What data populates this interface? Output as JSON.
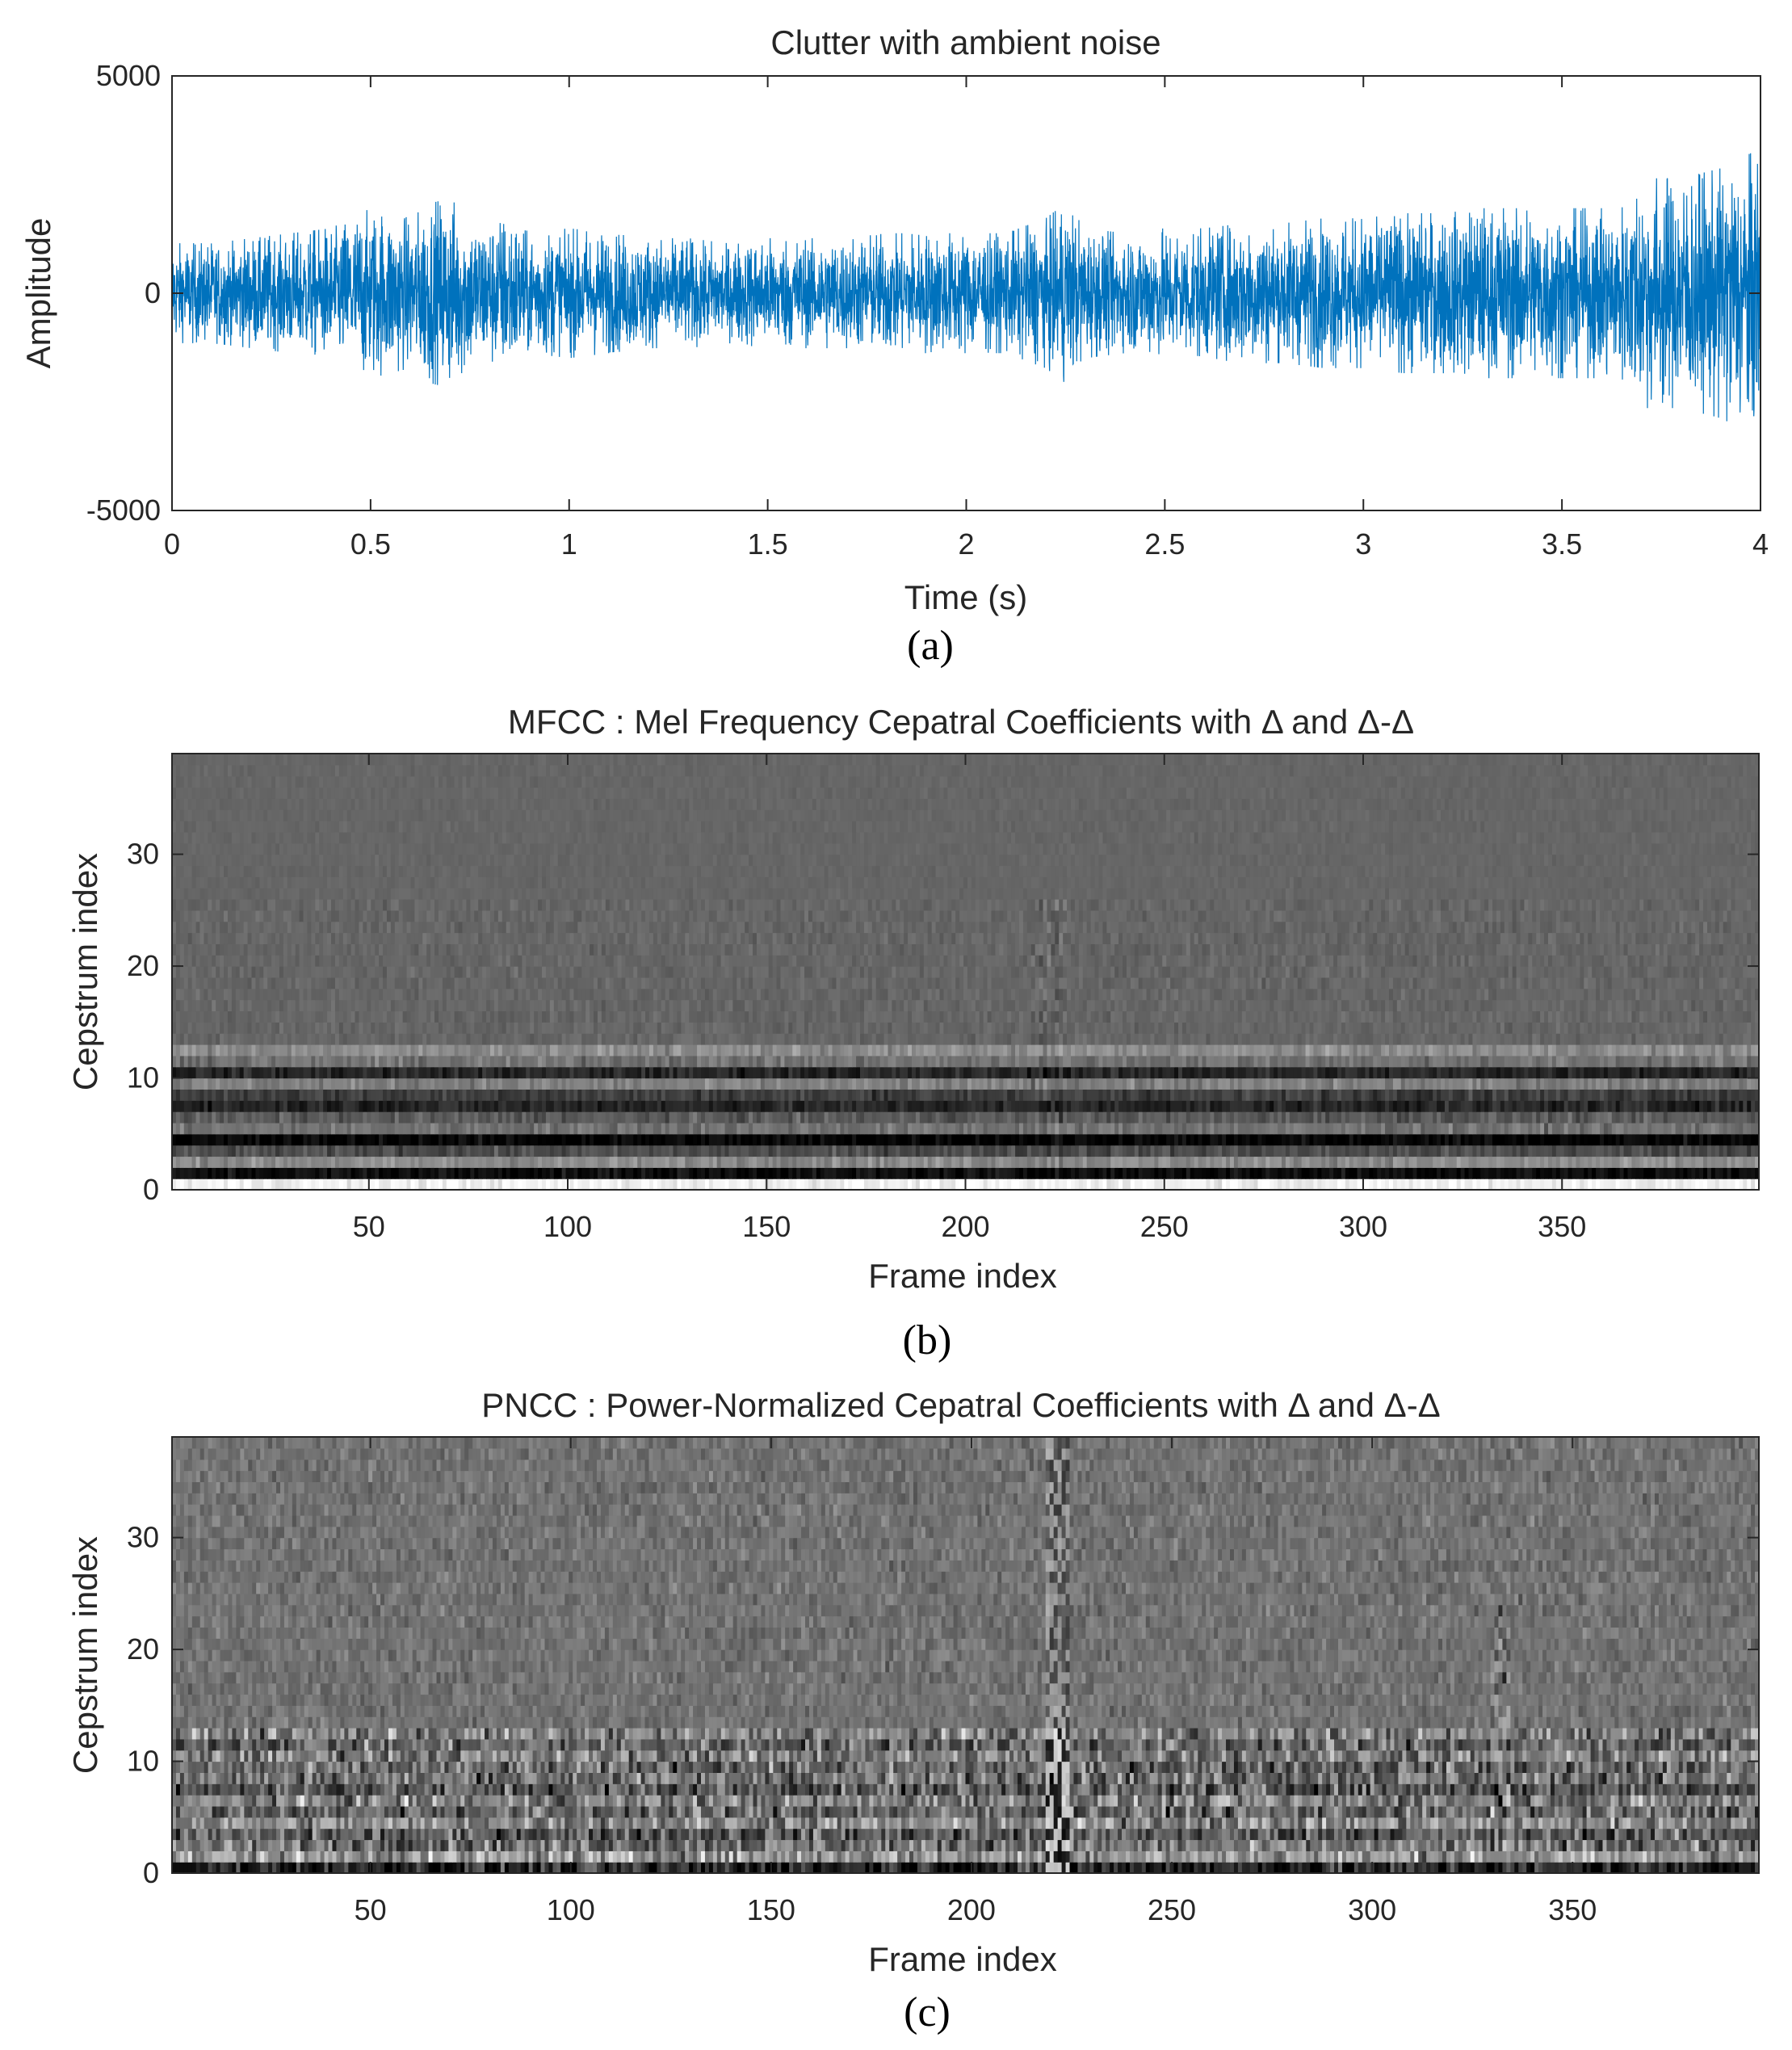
{
  "chart_data": [
    {
      "type": "line",
      "panel": "a",
      "title": "Clutter with ambient noise",
      "xlabel": "Time (s)",
      "ylabel": "Amplitude",
      "caption": "(a)",
      "xlim": [
        0,
        4
      ],
      "ylim": [
        -5000,
        5000
      ],
      "xticks": [
        0,
        0.5,
        1,
        1.5,
        2,
        2.5,
        3,
        3.5,
        4
      ],
      "xtick_labels": [
        "0",
        "0.5",
        "1",
        "1.5",
        "2",
        "2.5",
        "3",
        "3.5",
        "4"
      ],
      "yticks": [
        5000,
        0,
        -5000
      ],
      "ytick_labels": [
        "5000",
        "0",
        "-5000"
      ],
      "line_color": "#0072bd",
      "grid": false,
      "envelope": {
        "x": [
          0,
          0.1,
          0.2,
          0.3,
          0.4,
          0.5,
          0.55,
          0.6,
          0.65,
          0.7,
          0.75,
          0.8,
          0.85,
          0.9,
          1.0,
          1.1,
          1.2,
          1.3,
          1.4,
          1.5,
          1.6,
          1.7,
          1.8,
          1.9,
          2.0,
          2.1,
          2.2,
          2.25,
          2.3,
          2.4,
          2.5,
          2.6,
          2.7,
          2.8,
          2.9,
          3.0,
          3.1,
          3.2,
          3.3,
          3.4,
          3.5,
          3.6,
          3.65,
          3.7,
          3.75,
          3.8,
          3.9,
          4.0
        ],
        "amplitude": [
          1000,
          1000,
          1100,
          1200,
          1300,
          1700,
          1600,
          1500,
          1800,
          1900,
          1500,
          1400,
          1600,
          1200,
          1300,
          1200,
          1100,
          1100,
          1000,
          1100,
          1100,
          1100,
          1200,
          1200,
          1200,
          1200,
          1500,
          1800,
          1300,
          1200,
          1300,
          1300,
          1400,
          1400,
          1500,
          1500,
          1600,
          1600,
          1700,
          1700,
          1700,
          1700,
          1700,
          2300,
          2300,
          2300,
          2500,
          2900
        ]
      }
    },
    {
      "type": "heatmap",
      "panel": "b",
      "title": "MFCC : Mel Frequency Cepatral Coefficients with Δ and Δ-Δ",
      "xlabel": "Frame index",
      "ylabel": "Cepstrum index",
      "caption": "(b)",
      "xlim": [
        1,
        399
      ],
      "ylim": [
        0,
        39
      ],
      "xticks": [
        50,
        100,
        150,
        200,
        250,
        300,
        350
      ],
      "xtick_labels": [
        "50",
        "100",
        "150",
        "200",
        "250",
        "300",
        "350"
      ],
      "yticks": [
        0,
        10,
        20,
        30
      ],
      "ytick_labels": [
        "0",
        "10",
        "20",
        "30"
      ],
      "colormap": "gray",
      "rows": 39,
      "cols": 399,
      "grid": false
    },
    {
      "type": "heatmap",
      "panel": "c",
      "title": "PNCC : Power-Normalized Cepatral Coefficients with Δ and Δ-Δ",
      "xlabel": "Frame index",
      "ylabel": "Cepstrum index",
      "caption": "(c)",
      "xlim": [
        1,
        396
      ],
      "ylim": [
        0,
        39
      ],
      "xticks": [
        50,
        100,
        150,
        200,
        250,
        300,
        350
      ],
      "xtick_labels": [
        "50",
        "100",
        "150",
        "200",
        "250",
        "300",
        "350"
      ],
      "yticks": [
        0,
        10,
        20,
        30
      ],
      "ytick_labels": [
        "0",
        "10",
        "20",
        "30"
      ],
      "colormap": "gray",
      "rows": 39,
      "cols": 396,
      "grid": false
    }
  ]
}
